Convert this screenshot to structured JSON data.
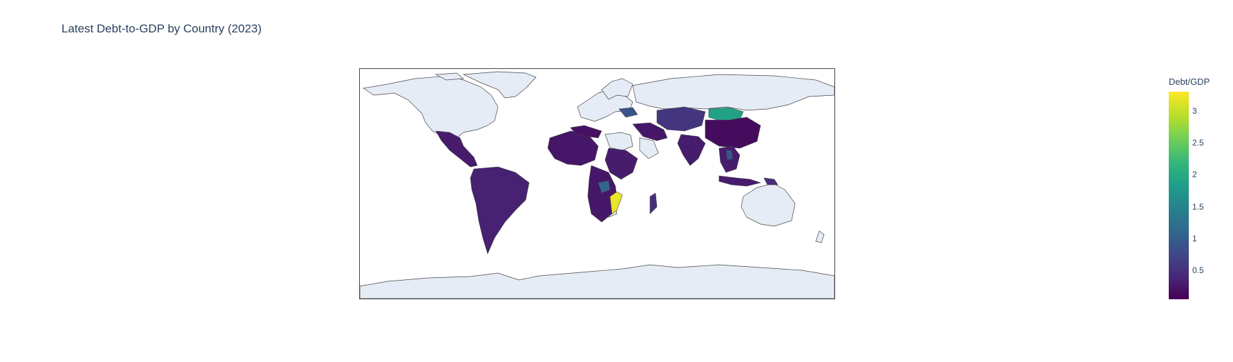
{
  "title": "Latest Debt-to-GDP by Country (2023)",
  "colorbar": {
    "title": "Debt/GDP",
    "ticks": [
      "0.5",
      "1",
      "1.5",
      "2",
      "2.5",
      "3"
    ],
    "tick_values": [
      0.5,
      1,
      1.5,
      2,
      2.5,
      3
    ],
    "range": [
      0.05,
      3.3
    ],
    "colorscale": [
      "#440154",
      "#482878",
      "#3e4989",
      "#31688e",
      "#26828e",
      "#1f9e89",
      "#35b779",
      "#6ece58",
      "#b5de2b",
      "#fde725"
    ]
  },
  "map": {
    "projection": "equirectangular",
    "land_color_no_data": "#e5ecf6",
    "border_color": "#444444"
  },
  "chart_data": {
    "type": "choropleth",
    "title": "Latest Debt-to-GDP by Country (2023)",
    "colorbar_title": "Debt/GDP",
    "zrange": [
      0.05,
      3.3
    ],
    "colored_regions": [
      {
        "region": "Mexico & Central America",
        "value": 0.3
      },
      {
        "region": "South America",
        "value": 0.35
      },
      {
        "region": "West Africa",
        "value": 0.25
      },
      {
        "region": "North Africa",
        "value": 0.2
      },
      {
        "region": "East Africa",
        "value": 0.3
      },
      {
        "region": "Southern Africa",
        "value": 0.25
      },
      {
        "region": "Mozambique",
        "value": 3.2
      },
      {
        "region": "Zambia / Malawi",
        "value": 1.1
      },
      {
        "region": "Ukraine",
        "value": 0.9
      },
      {
        "region": "Central Asia",
        "value": 0.55
      },
      {
        "region": "Mongolia",
        "value": 1.9
      },
      {
        "region": "China",
        "value": 0.15
      },
      {
        "region": "South Asia",
        "value": 0.3
      },
      {
        "region": "Middle East",
        "value": 0.25
      },
      {
        "region": "Southeast Asia",
        "value": 0.3
      },
      {
        "region": "Laos",
        "value": 0.9
      },
      {
        "region": "Indonesia",
        "value": 0.3
      },
      {
        "region": "Papua New Guinea",
        "value": 0.45
      },
      {
        "region": "Madagascar",
        "value": 0.5
      }
    ]
  }
}
